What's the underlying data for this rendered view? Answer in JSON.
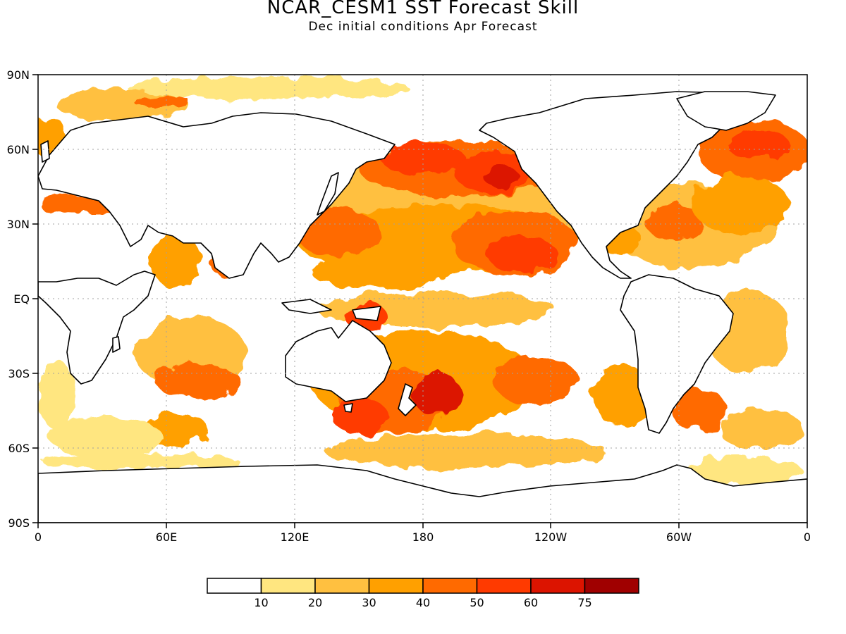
{
  "title": "NCAR_CESM1  SST Forecast Skill",
  "subtitle": "Dec initial conditions  Apr Forecast",
  "lat_labels": [
    "90N",
    "60N",
    "30N",
    "EQ",
    "30S",
    "60S",
    "90S"
  ],
  "lon_labels": [
    "0",
    "60E",
    "120E",
    "180",
    "120W",
    "60W",
    "0"
  ],
  "colorbar": {
    "colors": [
      "#ffffff",
      "#ffe680",
      "#ffc040",
      "#ffa000",
      "#ff6a00",
      "#ff3a00",
      "#dc1400",
      "#a00000"
    ],
    "labels": [
      "10",
      "20",
      "30",
      "40",
      "50",
      "60",
      "75"
    ]
  }
}
